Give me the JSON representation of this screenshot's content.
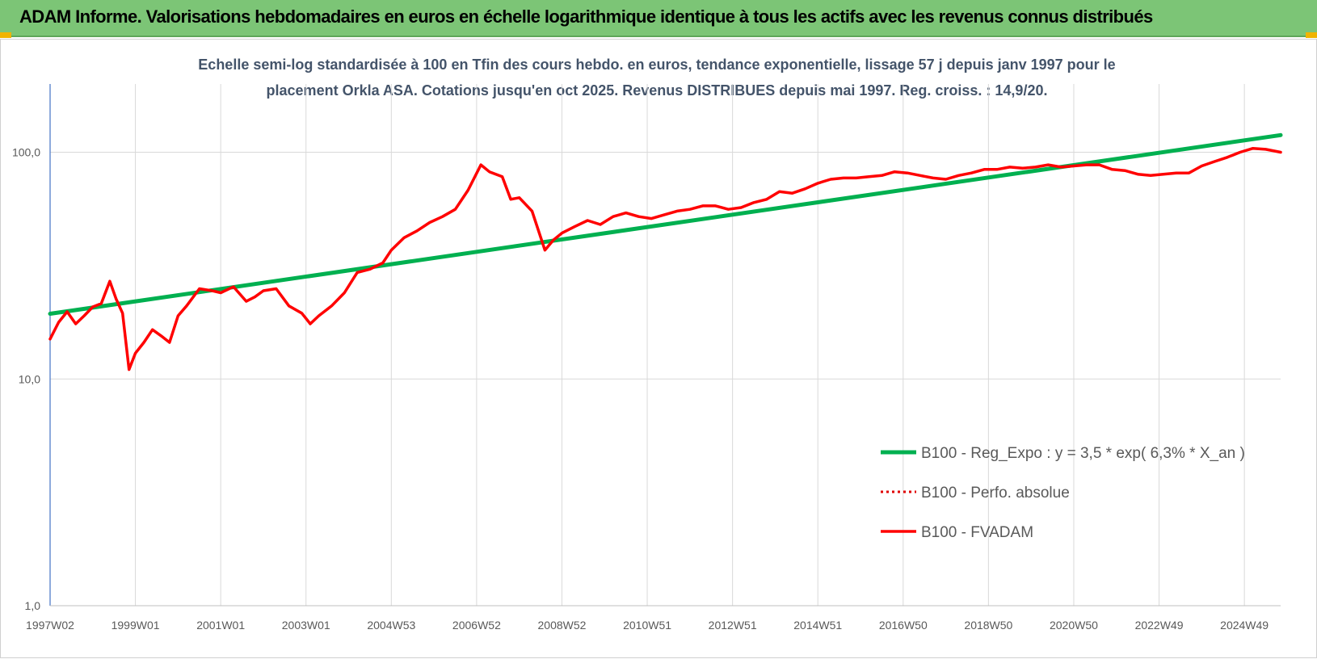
{
  "banner": {
    "title": "ADAM Informe. Valorisations hebdomadaires en euros en échelle logarithmique identique à tous les actifs avec les revenus connus distribués"
  },
  "colors": {
    "banner_bg": "#7cc576",
    "regression": "#00b050",
    "perf": "#e00000",
    "fvadam": "#ff0000",
    "grid": "#d9d9d9"
  },
  "chart_data": {
    "type": "line",
    "title_lines": [
      "Echelle semi-log standardisée à 100 en Tfin des cours hebdo. en euros, tendance exponentielle, lissage 57 j depuis janv 1997 pour le",
      "placement Orkla ASA. Cotations jusqu'en oct 2025. Revenus DISTRIBUES depuis mai 1997. Reg. croiss. : 14,9/20."
    ],
    "y_scale": "log",
    "ylim": [
      1,
      200
    ],
    "y_ticks": [
      "1,0",
      "10,0",
      "100,0"
    ],
    "y_tick_values": [
      1,
      10,
      100
    ],
    "xlim": [
      1997.0,
      2025.85
    ],
    "x_ticks": [
      "1997W02",
      "1999W01",
      "2001W01",
      "2003W01",
      "2004W53",
      "2006W52",
      "2008W52",
      "2010W51",
      "2012W51",
      "2014W51",
      "2016W50",
      "2018W50",
      "2020W50",
      "2022W49",
      "2024W49"
    ],
    "x_tick_values": [
      1997.0,
      1999.0,
      2001.0,
      2003.0,
      2005.0,
      2007.0,
      2009.0,
      2011.0,
      2013.0,
      2015.0,
      2017.0,
      2019.0,
      2021.0,
      2023.0,
      2025.0
    ],
    "gridlines": true,
    "legend_position": "bottom-right",
    "series": [
      {
        "name": "B100 - Reg_Expo : y = 3,5 * exp( 6,3% *  X_an )",
        "style": "solid-thick",
        "x": [
          1997.0,
          2025.85
        ],
        "values": [
          19.4,
          119.0
        ]
      },
      {
        "name": "B100 - Perfo. absolue",
        "style": "dotted",
        "x": [],
        "values": []
      },
      {
        "name": "B100 - FVADAM",
        "style": "solid",
        "x": [
          1997.0,
          1997.2,
          1997.4,
          1997.6,
          1997.8,
          1998.0,
          1998.2,
          1998.4,
          1998.55,
          1998.7,
          1998.85,
          1999.0,
          1999.2,
          1999.4,
          1999.6,
          1999.8,
          2000.0,
          2000.2,
          2000.5,
          2000.8,
          2001.0,
          2001.3,
          2001.6,
          2001.8,
          2002.0,
          2002.3,
          2002.6,
          2002.9,
          2003.1,
          2003.3,
          2003.6,
          2003.9,
          2004.2,
          2004.5,
          2004.8,
          2005.0,
          2005.3,
          2005.6,
          2005.9,
          2006.2,
          2006.5,
          2006.8,
          2007.1,
          2007.3,
          2007.6,
          2007.8,
          2008.0,
          2008.3,
          2008.6,
          2008.8,
          2009.0,
          2009.3,
          2009.6,
          2009.9,
          2010.2,
          2010.5,
          2010.8,
          2011.1,
          2011.4,
          2011.7,
          2012.0,
          2012.3,
          2012.6,
          2012.9,
          2013.2,
          2013.5,
          2013.8,
          2014.1,
          2014.4,
          2014.7,
          2015.0,
          2015.3,
          2015.6,
          2015.9,
          2016.2,
          2016.5,
          2016.8,
          2017.1,
          2017.4,
          2017.7,
          2018.0,
          2018.3,
          2018.6,
          2018.9,
          2019.2,
          2019.5,
          2019.8,
          2020.1,
          2020.4,
          2020.7,
          2021.0,
          2021.3,
          2021.6,
          2021.9,
          2022.2,
          2022.5,
          2022.8,
          2023.1,
          2023.4,
          2023.7,
          2024.0,
          2024.3,
          2024.6,
          2024.9,
          2025.2,
          2025.5,
          2025.85
        ],
        "values": [
          15.0,
          17.8,
          19.8,
          17.5,
          19.0,
          20.8,
          21.5,
          27.0,
          22.5,
          19.5,
          11.0,
          13.0,
          14.5,
          16.5,
          15.5,
          14.5,
          19.0,
          21.0,
          25.0,
          24.5,
          24.0,
          25.5,
          22.0,
          23.0,
          24.5,
          25.0,
          21.0,
          19.5,
          17.5,
          19.0,
          21.0,
          24.0,
          29.5,
          30.5,
          32.5,
          37.0,
          42.0,
          45.0,
          49.0,
          52.0,
          56.0,
          68.0,
          88.0,
          82.0,
          78.0,
          62.0,
          63.0,
          55.0,
          37.0,
          41.0,
          44.0,
          47.0,
          50.0,
          48.0,
          52.0,
          54.0,
          52.0,
          51.0,
          53.0,
          55.0,
          56.0,
          58.0,
          58.0,
          56.0,
          57.0,
          60.0,
          62.0,
          67.0,
          66.0,
          69.0,
          73.0,
          76.0,
          77.0,
          77.0,
          78.0,
          79.0,
          82.0,
          81.0,
          79.0,
          77.0,
          76.0,
          79.0,
          81.0,
          84.0,
          84.0,
          86.0,
          85.0,
          86.0,
          88.0,
          86.0,
          87.0,
          88.0,
          88.0,
          84.0,
          83.0,
          80.0,
          79.0,
          80.0,
          81.0,
          81.0,
          87.0,
          91.0,
          95.0,
          100.0,
          104.0,
          103.0,
          100.0
        ]
      }
    ]
  }
}
